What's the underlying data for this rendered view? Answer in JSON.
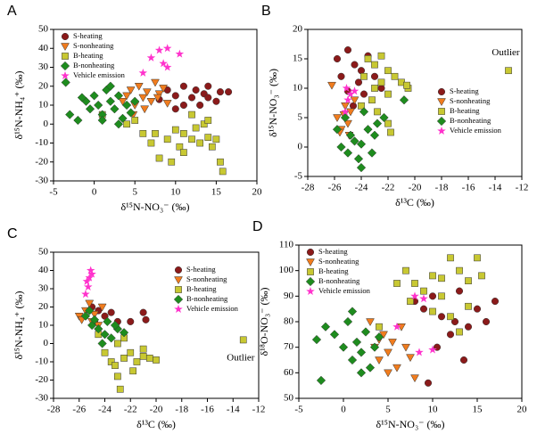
{
  "chart_data": [
    {
      "type": "scatter",
      "title": "A",
      "xlabel": "δ¹⁵N-NO₃⁻ (‰)",
      "ylabel": "δ¹⁵N-NH₄⁺ (‰)",
      "xlim": [
        -5,
        20
      ],
      "xticks": [
        -5,
        0,
        5,
        10,
        15,
        20
      ],
      "ylim": [
        -30,
        50
      ],
      "yticks": [
        -30,
        -20,
        -10,
        0,
        10,
        20,
        30,
        40,
        50
      ],
      "legend": "upper left",
      "series": [
        {
          "name": "S-heating",
          "color": "#8b1a1a",
          "marker": "circle",
          "x": [
            9,
            10,
            11,
            12,
            12.5,
            13,
            13.5,
            14,
            15,
            15.5,
            16.5,
            11,
            10,
            14,
            8
          ],
          "values": [
            18,
            15,
            20,
            14,
            18,
            10,
            16,
            20,
            12,
            17,
            17,
            10,
            8,
            14,
            13
          ]
        },
        {
          "name": "S-nonheating",
          "color": "#f07c1e",
          "marker": "triangle",
          "x": [
            3.5,
            4,
            4.5,
            5,
            5.5,
            6,
            6.5,
            7,
            7.5,
            8,
            8.5,
            9,
            4.8,
            6.2,
            7.8
          ],
          "values": [
            12,
            15,
            18,
            10,
            20,
            14,
            17,
            12,
            22,
            16,
            19,
            11,
            5,
            8,
            14
          ]
        },
        {
          "name": "B-heating",
          "color": "#c8c832",
          "marker": "square",
          "x": [
            1,
            4,
            6,
            7,
            8,
            9,
            10,
            10.5,
            11,
            12,
            12.5,
            13,
            13.5,
            14,
            14.5,
            15,
            15.5,
            15.8,
            12,
            14,
            11,
            9.5,
            7.5,
            5
          ],
          "values": [
            5,
            0,
            -5,
            -10,
            -18,
            -8,
            -3,
            -12,
            -5,
            -8,
            -2,
            -10,
            0,
            -7,
            -12,
            -8,
            -20,
            -25,
            5,
            2,
            -15,
            -20,
            -5,
            2
          ]
        },
        {
          "name": "B-nonheating",
          "color": "#1e8c1e",
          "marker": "diamond",
          "x": [
            -3.5,
            -3,
            -2,
            -1,
            -0.5,
            0,
            0.5,
            1,
            1.5,
            2,
            2.5,
            3,
            3.5,
            4,
            4.5,
            5,
            1,
            2,
            -1.5,
            3
          ],
          "values": [
            22,
            5,
            2,
            12,
            8,
            15,
            10,
            5,
            18,
            12,
            8,
            15,
            3,
            10,
            6,
            12,
            2,
            20,
            14,
            0
          ]
        },
        {
          "name": "Vehicle emission",
          "color": "#ff33cc",
          "marker": "star",
          "x": [
            6,
            7,
            8,
            9,
            10.5,
            8.5,
            9
          ],
          "values": [
            27,
            35,
            39,
            40,
            37,
            32,
            30
          ]
        }
      ]
    },
    {
      "type": "scatter",
      "title": "B",
      "xlabel": "δ¹³C (‰)",
      "ylabel": "δ¹⁵N-NO₃⁻ (‰)",
      "xlim": [
        -28,
        -12
      ],
      "xticks": [
        -28,
        -26,
        -24,
        -22,
        -20,
        -18,
        -16,
        -14,
        -12
      ],
      "ylim": [
        -5,
        20
      ],
      "yticks": [
        -5,
        0,
        5,
        10,
        15,
        20
      ],
      "legend": "center right",
      "annotations": [
        {
          "text": "Outlier",
          "x": -13.2,
          "y": 16
        }
      ],
      "series": [
        {
          "name": "S-heating",
          "color": "#8b1a1a",
          "marker": "circle",
          "x": [
            -25.8,
            -25,
            -24.5,
            -24,
            -23.5,
            -23,
            -25.5,
            -24.2,
            -23.8,
            -25,
            -22.5,
            -24.6
          ],
          "values": [
            15,
            16.5,
            14,
            13,
            15.5,
            12,
            12,
            11,
            9,
            9.5,
            10,
            7
          ]
        },
        {
          "name": "S-nonheating",
          "color": "#f07c1e",
          "marker": "triangle",
          "x": [
            -26.2,
            -25.8,
            -25.5,
            -25.2,
            -25,
            -24.8,
            -24.5,
            -25.6,
            -24.9,
            -25.3
          ],
          "values": [
            10.5,
            5,
            3,
            7,
            4,
            6,
            8,
            2.5,
            2,
            5.5
          ]
        },
        {
          "name": "B-heating",
          "color": "#c8c832",
          "marker": "square",
          "x": [
            -23.5,
            -23,
            -22.5,
            -22,
            -22.5,
            -23,
            -21.5,
            -21,
            -20.5,
            -22,
            -23.2,
            -22.8,
            -22,
            -24,
            -21.8,
            -20.6,
            -23.8,
            -13
          ],
          "values": [
            15,
            14,
            15.5,
            13,
            11,
            10,
            12,
            11,
            10,
            9,
            8,
            6,
            4,
            7,
            2.5,
            10.5,
            12,
            13
          ]
        },
        {
          "name": "B-nonheating",
          "color": "#1e8c1e",
          "marker": "diamond",
          "x": [
            -25.8,
            -25.5,
            -25,
            -24.8,
            -24.5,
            -24.2,
            -24,
            -23.5,
            -23.2,
            -23,
            -22.8,
            -24,
            -25.2,
            -22.3,
            -20.8,
            -23.8
          ],
          "values": [
            3,
            0,
            -1,
            2,
            1,
            -2,
            0.5,
            3,
            -1,
            2,
            4,
            -3.5,
            5,
            5,
            8,
            6
          ]
        },
        {
          "name": "Vehicle emission",
          "color": "#ff33cc",
          "marker": "star",
          "x": [
            -25.2,
            -25,
            -24.8,
            -24.5,
            -25.1
          ],
          "values": [
            6,
            8,
            9,
            9.5,
            10
          ]
        }
      ]
    },
    {
      "type": "scatter",
      "title": "C",
      "xlabel": "δ¹³C (‰)",
      "ylabel": "δ¹⁵N-NH₄⁺ (‰)",
      "xlim": [
        -28,
        -12
      ],
      "xticks": [
        -28,
        -26,
        -24,
        -22,
        -20,
        -18,
        -16,
        -14,
        -12
      ],
      "ylim": [
        -30,
        50
      ],
      "yticks": [
        -30,
        -20,
        -10,
        0,
        10,
        20,
        30,
        40,
        50
      ],
      "legend": "upper right",
      "annotations": [
        {
          "text": "Outlier",
          "x": -13.4,
          "y": -8
        }
      ],
      "series": [
        {
          "name": "S-heating",
          "color": "#8b1a1a",
          "marker": "circle",
          "x": [
            -25,
            -24.5,
            -24,
            -23.5,
            -23,
            -22,
            -21,
            -20.8,
            -24.8
          ],
          "values": [
            20,
            18,
            15,
            17,
            12,
            12,
            17,
            13,
            12
          ]
        },
        {
          "name": "S-nonheating",
          "color": "#f07c1e",
          "marker": "triangle",
          "x": [
            -26,
            -25.5,
            -25.2,
            -25,
            -24.8,
            -24.5,
            -25.8,
            -24.2
          ],
          "values": [
            15,
            18,
            22,
            12,
            16,
            10,
            13,
            20
          ]
        },
        {
          "name": "B-heating",
          "color": "#c8c832",
          "marker": "square",
          "x": [
            -24,
            -23.5,
            -23,
            -22.8,
            -22.5,
            -22,
            -21.5,
            -21,
            -20.5,
            -20,
            -23,
            -22.5,
            -24.5,
            -21.8,
            -23.2,
            -21,
            -13.2
          ],
          "values": [
            -5,
            -10,
            -18,
            -25,
            -8,
            -5,
            -10,
            -7,
            -8,
            -9,
            0,
            3,
            5,
            -15,
            -12,
            -3,
            2
          ]
        },
        {
          "name": "B-nonheating",
          "color": "#1e8c1e",
          "marker": "diamond",
          "x": [
            -25.5,
            -25,
            -24.5,
            -24,
            -23.8,
            -23.5,
            -23,
            -22.5,
            -24.2,
            -25.2,
            -23.2,
            -24.8
          ],
          "values": [
            15,
            10,
            8,
            5,
            12,
            3,
            8,
            6,
            0,
            18,
            10,
            13
          ]
        },
        {
          "name": "Vehicle emission",
          "color": "#ff33cc",
          "marker": "star",
          "x": [
            -25.5,
            -25.3,
            -25.2,
            -25,
            -25.1,
            -25.4
          ],
          "values": [
            27,
            31,
            36,
            38,
            40,
            34
          ]
        }
      ]
    },
    {
      "type": "scatter",
      "title": "D",
      "xlabel": "δ¹⁵N-NO₃⁻ (‰)",
      "ylabel": "δ¹⁸O-NO₃⁻ (‰)",
      "xlim": [
        -5,
        20
      ],
      "xticks": [
        -5,
        0,
        5,
        10,
        15,
        20
      ],
      "ylim": [
        50,
        110
      ],
      "yticks": [
        50,
        60,
        70,
        80,
        90,
        100,
        110
      ],
      "legend": "upper left",
      "series": [
        {
          "name": "S-heating",
          "color": "#8b1a1a",
          "marker": "circle",
          "x": [
            8,
            9,
            9.5,
            10,
            11,
            12,
            12.5,
            13,
            14,
            15,
            16,
            17,
            10.5,
            13.5
          ],
          "values": [
            88,
            85,
            56,
            90,
            82,
            75,
            80,
            92,
            78,
            85,
            80,
            88,
            70,
            65
          ]
        },
        {
          "name": "S-nonheating",
          "color": "#f07c1e",
          "marker": "triangle",
          "x": [
            3,
            3.5,
            4,
            4.5,
            5,
            5.5,
            6,
            6.5,
            7,
            7.5,
            8,
            5,
            4
          ],
          "values": [
            80,
            70,
            65,
            75,
            68,
            72,
            62,
            78,
            70,
            66,
            58,
            60,
            73
          ]
        },
        {
          "name": "B-heating",
          "color": "#c8c832",
          "marker": "square",
          "x": [
            4,
            6,
            7,
            8,
            9,
            10,
            11,
            12,
            13,
            14,
            15,
            15.5,
            12,
            14,
            10,
            7.5,
            13,
            11
          ],
          "values": [
            78,
            95,
            100,
            95,
            92,
            98,
            90,
            105,
            100,
            96,
            105,
            98,
            82,
            86,
            84,
            88,
            76,
            97
          ]
        },
        {
          "name": "B-nonheating",
          "color": "#1e8c1e",
          "marker": "diamond",
          "x": [
            -3,
            -2.5,
            -2,
            -1,
            0,
            0.5,
            1,
            1.5,
            2,
            2.5,
            3,
            3.5,
            4,
            1,
            2
          ],
          "values": [
            73,
            57,
            78,
            75,
            70,
            80,
            65,
            72,
            68,
            76,
            62,
            70,
            74,
            84,
            60
          ]
        },
        {
          "name": "Vehicle emission",
          "color": "#ff33cc",
          "marker": "star",
          "x": [
            6,
            8,
            9,
            8.5,
            10
          ],
          "values": [
            78,
            90,
            89,
            68,
            69
          ]
        }
      ]
    }
  ]
}
